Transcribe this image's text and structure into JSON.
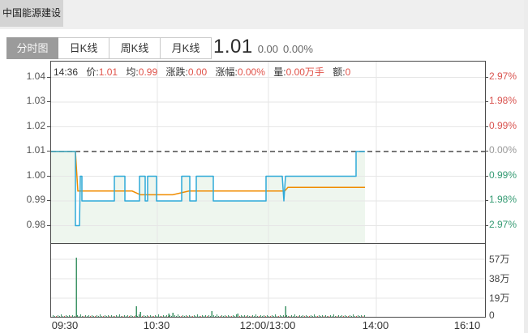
{
  "header": {
    "stock_name": "中国能源建设"
  },
  "tabs": [
    {
      "label": "分时图",
      "active": true
    },
    {
      "label": "日K线",
      "active": false
    },
    {
      "label": "周K线",
      "active": false
    },
    {
      "label": "月K线",
      "active": false
    }
  ],
  "quote": {
    "price": "1.01",
    "change": "0.00",
    "change_pct": "0.00%"
  },
  "info_bar": {
    "time": "14:36",
    "items": [
      {
        "label": "价:",
        "value": "1.01"
      },
      {
        "label": "均:",
        "value": "0.99"
      },
      {
        "label": "涨跌:",
        "value": "0.00"
      },
      {
        "label": "涨幅:",
        "value": "0.00%"
      },
      {
        "label": "量:",
        "value": "0.00万手"
      },
      {
        "label": "额:",
        "value": "0"
      }
    ]
  },
  "colors": {
    "up_red": "#d9534f",
    "down_green": "#359b73",
    "value_red": "#e0534a",
    "price_line": "#2faad8",
    "avg_line": "#f08c00",
    "fill_green": "#eef6ee",
    "grid": "#e6e6e6",
    "dashed": "#4a4a4a",
    "vol_bar_green": "#3f9467",
    "vol_bar_red": "#d9544f"
  },
  "chart_data": {
    "type": "line",
    "title": "分时图 intraday chart: price line, average line, volume bars",
    "prev_close": 1.01,
    "last_price": 1.01,
    "last_time": "14:36",
    "price_axis": {
      "labels": [
        "1.04",
        "1.03",
        "1.02",
        "1.01",
        "1.00",
        "0.99",
        "0.98"
      ],
      "values": [
        1.04,
        1.03,
        1.02,
        1.01,
        1.0,
        0.99,
        0.98
      ]
    },
    "pct_axis": {
      "labels": [
        "2.97%",
        "1.98%",
        "0.99%",
        "0.00%",
        "0.99%",
        "1.98%",
        "2.97%"
      ],
      "tones": [
        "red",
        "red",
        "red",
        "gray",
        "green",
        "green",
        "green"
      ]
    },
    "volume_axis": {
      "labels": [
        "57万",
        "38万",
        "19万",
        "0"
      ],
      "y": [
        19,
        43,
        67,
        90
      ]
    },
    "time_labels": [
      {
        "label": "09:30",
        "x": 18
      },
      {
        "label": "10:30",
        "x": 131
      },
      {
        "label": "12:00/13:00",
        "x": 268
      },
      {
        "label": "14:00",
        "x": 401
      },
      {
        "label": "16:10",
        "x": 514
      }
    ],
    "x_gridlines": [
      131,
      268,
      401
    ],
    "series": [
      {
        "name": "price",
        "color_key": "price_line",
        "points": [
          [
            0,
            1.01
          ],
          [
            30,
            1.01
          ],
          [
            30,
            0.98
          ],
          [
            35,
            0.98
          ],
          [
            36,
            1.0
          ],
          [
            38,
            1.0
          ],
          [
            38,
            0.99
          ],
          [
            78,
            0.99
          ],
          [
            78,
            1.0
          ],
          [
            91,
            1.0
          ],
          [
            91,
            0.99
          ],
          [
            109,
            0.99
          ],
          [
            109,
            1.0
          ],
          [
            116,
            1.0
          ],
          [
            116,
            0.99
          ],
          [
            119,
            0.99
          ],
          [
            119,
            1.0
          ],
          [
            130,
            1.0
          ],
          [
            130,
            0.99
          ],
          [
            161,
            0.99
          ],
          [
            161,
            1.0
          ],
          [
            171,
            1.0
          ],
          [
            171,
            0.99
          ],
          [
            179,
            0.99
          ],
          [
            179,
            1.0
          ],
          [
            200,
            1.0
          ],
          [
            200,
            0.99
          ],
          [
            265,
            0.99
          ],
          [
            265,
            1.0
          ],
          [
            285,
            1.0
          ],
          [
            287,
            0.99
          ],
          [
            289,
            1.0
          ],
          [
            376,
            1.0
          ],
          [
            376,
            1.01
          ],
          [
            387,
            1.01
          ]
        ]
      },
      {
        "name": "average",
        "color_key": "avg_line",
        "points": [
          [
            0,
            1.01
          ],
          [
            30,
            1.01
          ],
          [
            33,
            0.994
          ],
          [
            100,
            0.994
          ],
          [
            110,
            0.9925
          ],
          [
            150,
            0.9925
          ],
          [
            170,
            0.994
          ],
          [
            288,
            0.994
          ],
          [
            292,
            0.9955
          ],
          [
            387,
            0.9955
          ]
        ]
      }
    ],
    "volume": {
      "spikes": [
        {
          "x": 31,
          "h": 73,
          "c": "g"
        },
        {
          "x": 105,
          "h": 13,
          "c": "g"
        },
        {
          "x": 110,
          "h": 6,
          "c": "g"
        },
        {
          "x": 145,
          "h": 4,
          "c": "g"
        },
        {
          "x": 150,
          "h": 5,
          "c": "g"
        },
        {
          "x": 198,
          "h": 7,
          "c": "g"
        },
        {
          "x": 230,
          "h": 4,
          "c": "g"
        },
        {
          "x": 289,
          "h": 13,
          "c": "g"
        }
      ],
      "baseline": {
        "from": 2,
        "to": 387,
        "step": 2,
        "heights": [
          2,
          1,
          1,
          2,
          1,
          3,
          1,
          1,
          2,
          1,
          2,
          1
        ],
        "tones": [
          "g",
          "g",
          "r",
          "g",
          "g",
          "g",
          "g",
          "r",
          "g",
          "g",
          "g",
          "r"
        ]
      }
    }
  }
}
